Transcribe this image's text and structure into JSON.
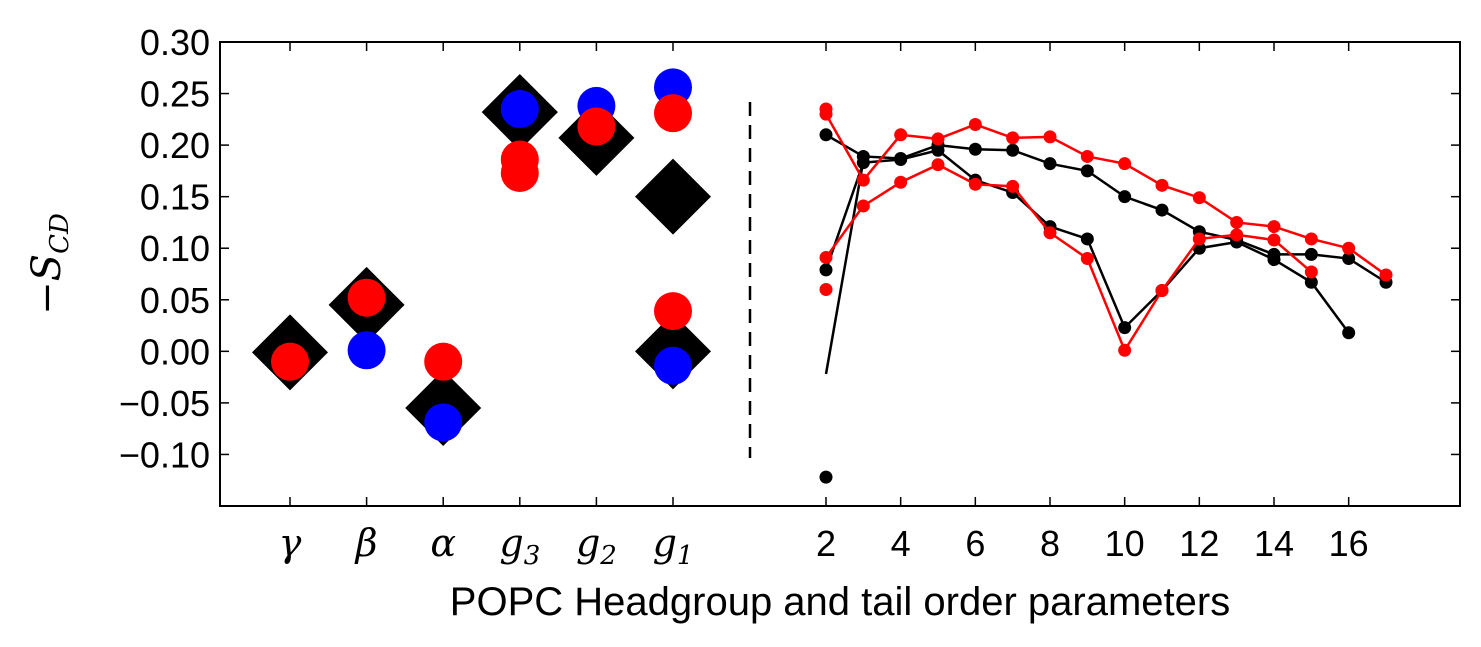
{
  "chart_data": {
    "type": "scatter",
    "xlabel": "POPC Headgroup and tail order parameters",
    "ylabel": "−S",
    "ylabel_sub": "CD",
    "ylim": [
      -0.15,
      0.3
    ],
    "yticks": [
      "0.30",
      "0.25",
      "0.20",
      "0.15",
      "0.10",
      "0.05",
      "0.00",
      "−0.05",
      "−0.10"
    ],
    "ytick_values": [
      0.3,
      0.25,
      0.2,
      0.15,
      0.1,
      0.05,
      0.0,
      -0.05,
      -0.1
    ],
    "grid": false,
    "headgroup": {
      "labels": [
        {
          "base": "γ",
          "sub": ""
        },
        {
          "base": "β",
          "sub": ""
        },
        {
          "base": "α",
          "sub": ""
        },
        {
          "base": "g",
          "sub": "3"
        },
        {
          "base": "g",
          "sub": "2"
        },
        {
          "base": "g",
          "sub": "1"
        }
      ],
      "series": [
        {
          "marker": "diamond",
          "color": "#000000",
          "points": [
            [
              0,
              -0.001
            ],
            [
              1,
              0.045
            ],
            [
              2,
              -0.055
            ],
            [
              3,
              0.232
            ],
            [
              3,
              0.232
            ],
            [
              4,
              0.207
            ],
            [
              5,
              0.15
            ],
            [
              5,
              0.0
            ]
          ]
        },
        {
          "marker": "circle",
          "color": "#0000ff",
          "points": [
            [
              1,
              0.001
            ],
            [
              2,
              -0.069
            ],
            [
              3,
              0.235
            ],
            [
              4,
              0.238
            ],
            [
              5,
              0.256
            ],
            [
              5,
              -0.014
            ]
          ]
        },
        {
          "marker": "circle",
          "color": "#ff0000",
          "points": [
            [
              0,
              -0.01
            ],
            [
              1,
              0.052
            ],
            [
              2,
              -0.01
            ],
            [
              3,
              0.186
            ],
            [
              3,
              0.173
            ],
            [
              4,
              0.218
            ],
            [
              5,
              0.231
            ],
            [
              5,
              0.039
            ]
          ]
        }
      ]
    },
    "tail": {
      "xticks": [
        "2",
        "4",
        "6",
        "8",
        "10",
        "12",
        "14",
        "16"
      ],
      "xtick_values": [
        2,
        4,
        6,
        8,
        10,
        12,
        14,
        16
      ],
      "xlim": [
        1.5,
        17.5
      ],
      "series": [
        {
          "color": "#000000",
          "x": [
            2,
            3,
            4,
            5,
            6,
            7,
            8,
            9,
            10,
            11,
            12,
            13,
            14,
            15,
            16,
            17
          ],
          "y": [
            0.21,
            0.189,
            0.187,
            0.2,
            0.196,
            0.195,
            0.182,
            0.175,
            0.15,
            0.137,
            0.116,
            0.108,
            0.094,
            0.094,
            0.09,
            0.067
          ]
        },
        {
          "color": "#000000",
          "x": [
            2,
            3,
            4,
            5,
            6,
            7,
            8,
            9,
            10,
            11,
            12,
            13,
            14,
            15,
            16
          ],
          "y": [
            0.079,
            0.183,
            0.186,
            0.195,
            0.166,
            0.154,
            0.121,
            0.109,
            0.023,
            0.059,
            0.1,
            0.106,
            0.089,
            0.067,
            0.018
          ]
        },
        {
          "color": "#ff0000",
          "x": [
            2,
            3,
            4,
            5,
            6,
            7,
            8,
            9,
            10,
            11,
            12,
            13,
            14,
            15,
            16,
            17
          ],
          "y": [
            0.23,
            0.166,
            0.21,
            0.206,
            0.22,
            0.207,
            0.208,
            0.189,
            0.182,
            0.161,
            0.149,
            0.125,
            0.121,
            0.109,
            0.1,
            0.074
          ]
        },
        {
          "color": "#ff0000",
          "x": [
            2,
            3,
            4,
            5,
            6,
            7,
            8,
            9,
            10,
            11,
            12,
            13,
            14,
            15
          ],
          "y": [
            0.091,
            0.141,
            0.164,
            0.181,
            0.162,
            0.16,
            0.115,
            0.09,
            0.001,
            0.059,
            0.109,
            0.113,
            0.108,
            0.077
          ]
        }
      ],
      "extra_points": [
        {
          "color": "#ff0000",
          "x": 2,
          "y": 0.235
        },
        {
          "color": "#ff0000",
          "x": 2,
          "y": 0.06
        },
        {
          "color": "#000000",
          "x": 2,
          "y": -0.122
        }
      ],
      "extra_line": {
        "color": "#000000",
        "x": [
          2,
          3
        ],
        "y": [
          -0.022,
          0.185
        ]
      }
    }
  }
}
